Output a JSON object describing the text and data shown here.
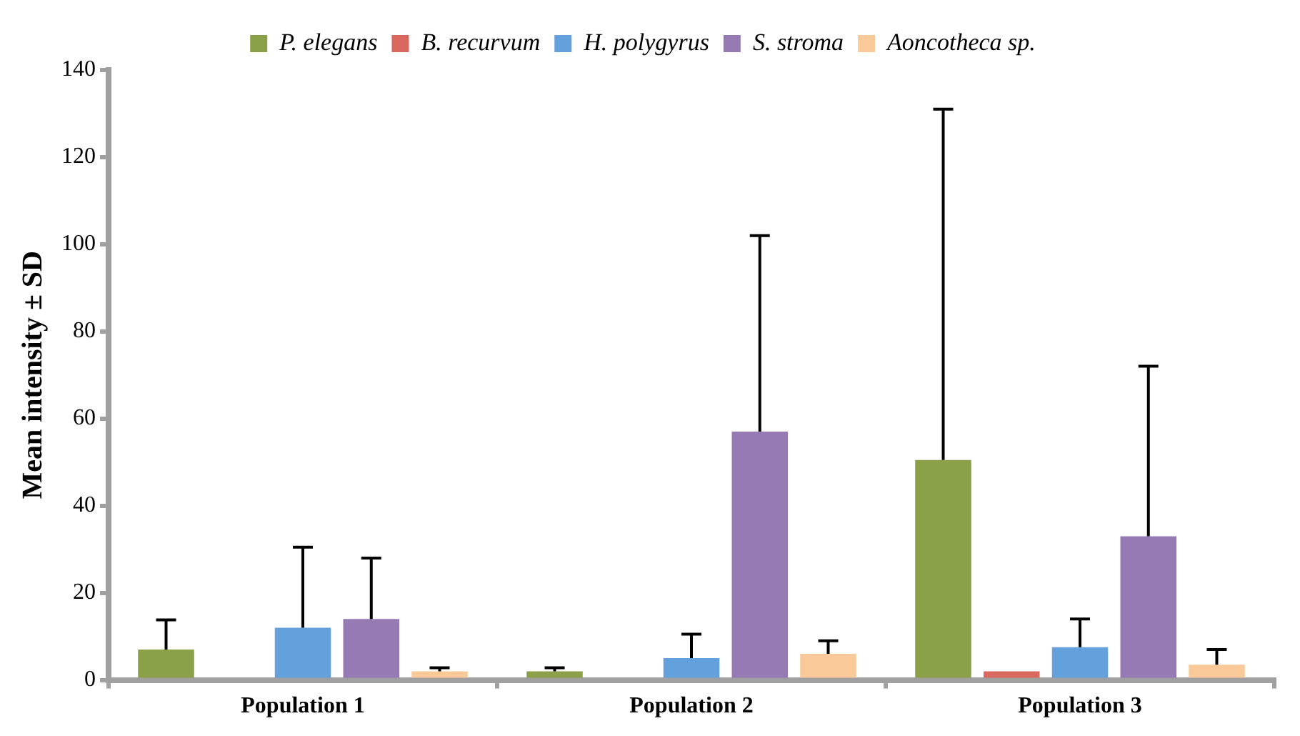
{
  "chart_data": {
    "type": "bar",
    "ylabel": "Mean intensity ± SD",
    "categories": [
      "Population 1",
      "Population 2",
      "Population 3"
    ],
    "series": [
      {
        "name": "P. elegans",
        "color": "#8aa14a",
        "values": [
          7,
          2,
          50.5
        ],
        "errors": [
          [
            7,
            13.8
          ],
          [
            2,
            2.8
          ],
          [
            50.5,
            131
          ]
        ]
      },
      {
        "name": "B. recurvum",
        "color": "#d9695f",
        "values": [
          null,
          null,
          2
        ],
        "errors": [
          null,
          null,
          null
        ]
      },
      {
        "name": "H. polygyrus",
        "color": "#64a0dc",
        "values": [
          12,
          5,
          7.5
        ],
        "errors": [
          [
            12,
            30.5
          ],
          [
            5,
            10.5
          ],
          [
            7.5,
            14
          ]
        ]
      },
      {
        "name": "S. stroma",
        "color": "#957ab3",
        "values": [
          14,
          57,
          33
        ],
        "errors": [
          [
            14,
            28
          ],
          [
            57,
            102
          ],
          [
            33,
            72
          ]
        ]
      },
      {
        "name": "Aoncotheca sp.",
        "color": "#fac99a",
        "values": [
          2,
          6,
          3.5
        ],
        "errors": [
          [
            2,
            2.8
          ],
          [
            6,
            9
          ],
          [
            3.5,
            7
          ]
        ]
      }
    ],
    "ylim": [
      0,
      140
    ],
    "yticks": [
      0,
      20,
      40,
      60,
      80,
      100,
      120,
      140
    ],
    "grid": false,
    "legend": "top"
  }
}
